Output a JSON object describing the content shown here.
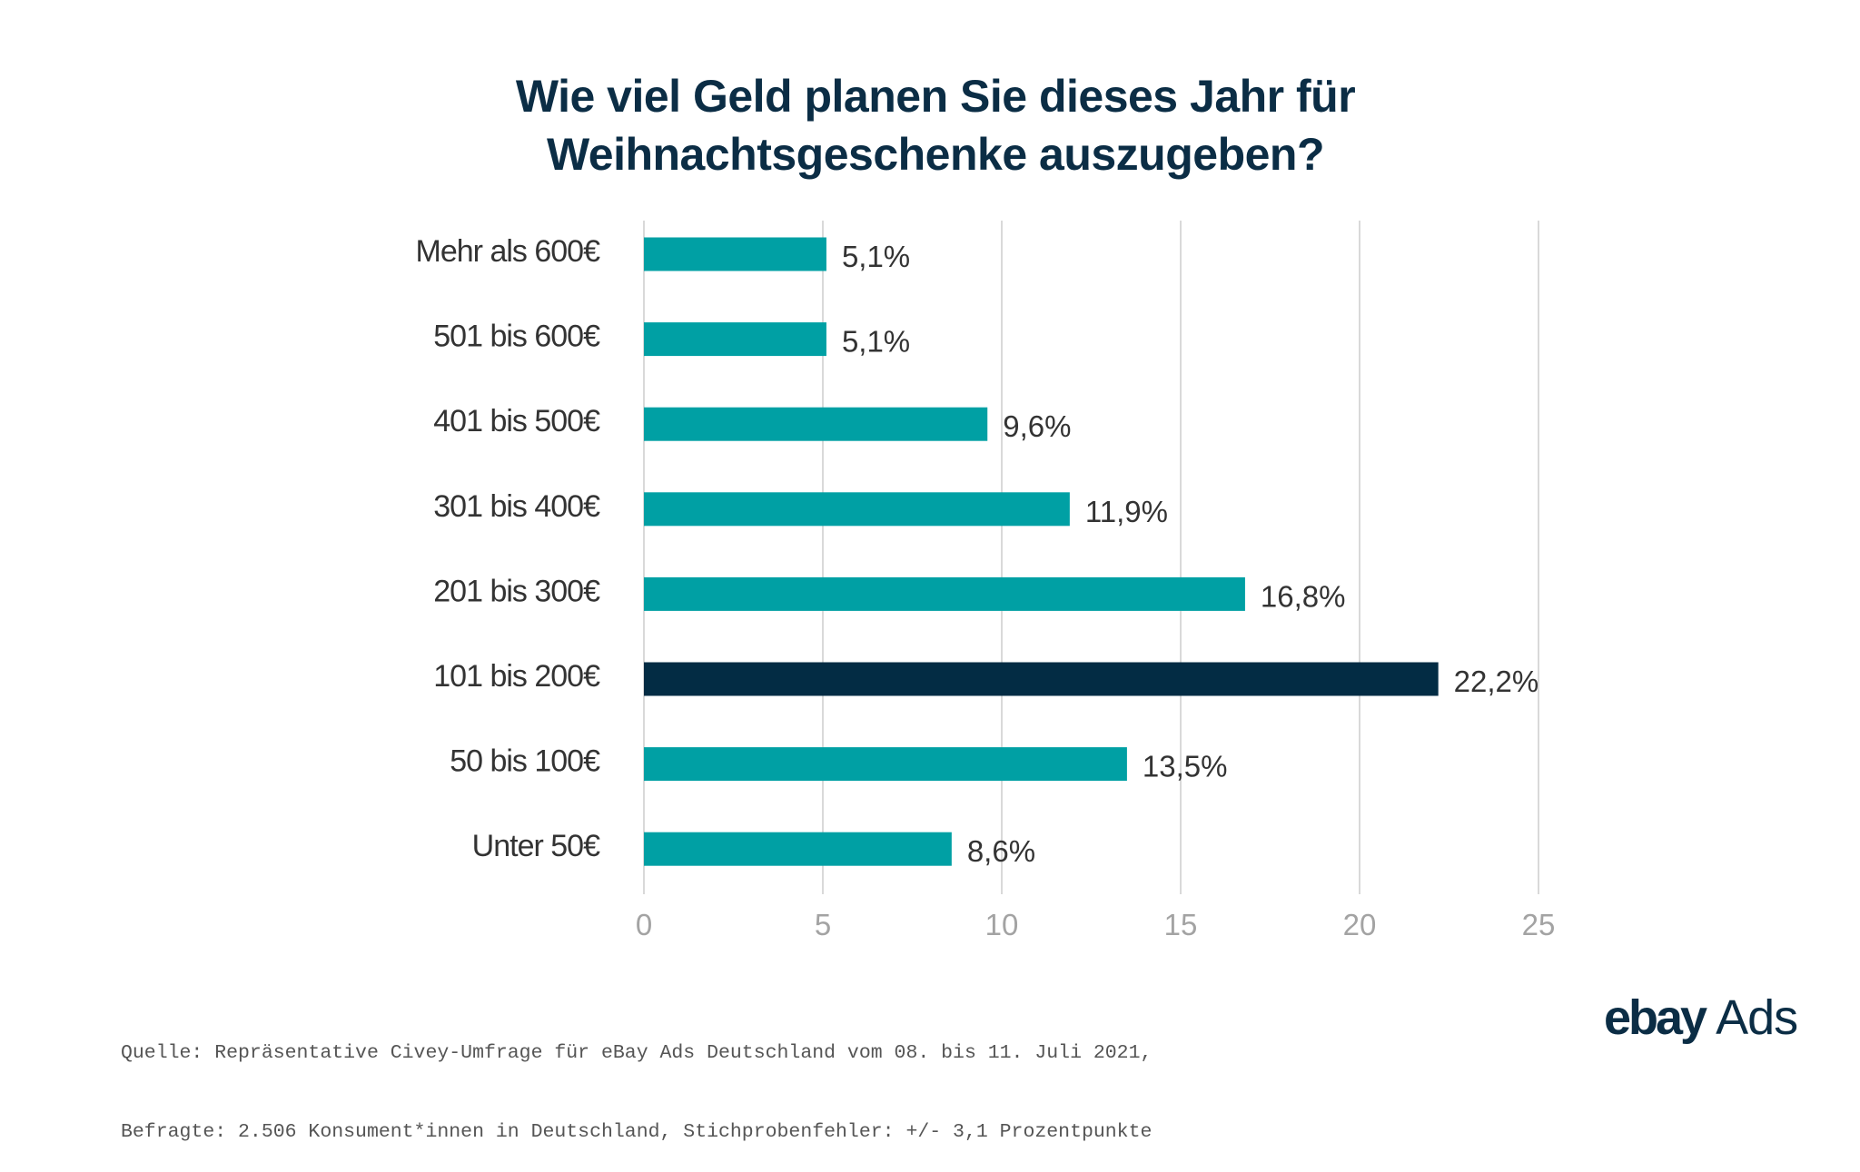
{
  "title_lines": [
    "Wie viel Geld planen Sie dieses Jahr für",
    "Weihnachtsgeschenke auszugeben?"
  ],
  "source_lines": [
    "Quelle: Repräsentative Civey-Umfrage für eBay Ads Deutschland vom 08. bis 11. Juli 2021,",
    "Befragte: 2.506 Konsument*innen in Deutschland, Stichprobenfehler: +/- 3,1 Prozentpunkte"
  ],
  "logo": {
    "brand": "ebay",
    "product": "Ads"
  },
  "colors": {
    "bar": "#00a0a4",
    "highlight_bar": "#032c44",
    "title": "#0b2d45",
    "grid": "#d9d9d9"
  },
  "chart_data": {
    "type": "bar",
    "orientation": "horizontal",
    "title": "Wie viel Geld planen Sie dieses Jahr für Weihnachtsgeschenke auszugeben?",
    "xlabel": "",
    "ylabel": "",
    "categories": [
      "Mehr als 600€",
      "501 bis 600€",
      "401 bis 500€",
      "301 bis 400€",
      "201 bis 300€",
      "101 bis 200€",
      "50 bis 100€",
      "Unter 50€"
    ],
    "values": [
      5.1,
      5.1,
      9.6,
      11.9,
      16.8,
      22.2,
      13.5,
      8.6
    ],
    "value_labels": [
      "5,1%",
      "5,1%",
      "9,6%",
      "11,9%",
      "16,8%",
      "22,2%",
      "13,5%",
      "8,6%"
    ],
    "highlight_index": 5,
    "xlim": [
      0,
      25
    ],
    "xticks": [
      0,
      5,
      10,
      15,
      20,
      25
    ],
    "xtick_labels": [
      "0",
      "5",
      "10",
      "15",
      "20",
      "25"
    ],
    "grid": "vertical",
    "legend": "none"
  }
}
